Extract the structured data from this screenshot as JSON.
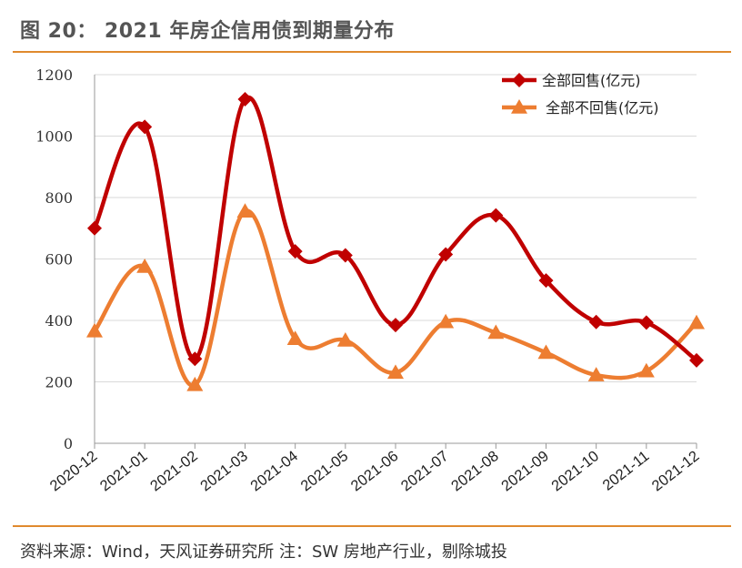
{
  "figure_title": "图 20： 2021 年房企信用债到期量分布",
  "source_note": "资料来源：Wind，天风证券研究所   注：SW 房地产行业，剔除城投",
  "colors": {
    "accent_rule": "#e08a2e",
    "series_1": "#c00000",
    "series_2": "#ed7d31"
  },
  "chart_data": {
    "type": "line",
    "title": "",
    "xlabel": "",
    "ylabel": "",
    "ylim": [
      0,
      1200
    ],
    "yticks": [
      "0",
      "200",
      "400",
      "600",
      "800",
      "1000",
      "1200"
    ],
    "grid": true,
    "legend": "top-right",
    "x": [
      "2020-12",
      "2021-01",
      "2021-02",
      "2021-03",
      "2021-04",
      "2021-05",
      "2021-06",
      "2021-07",
      "2021-08",
      "2021-09",
      "2021-10",
      "2021-11",
      "2021-12"
    ],
    "series": [
      {
        "name": "全部回售(亿元)",
        "marker": "diamond",
        "color": "#c00000",
        "values": [
          700,
          1030,
          275,
          1120,
          625,
          612,
          385,
          615,
          742,
          530,
          395,
          393,
          270
        ]
      },
      {
        "name": "全部不回售(亿元)",
        "marker": "triangle",
        "color": "#ed7d31",
        "values": [
          365,
          575,
          190,
          755,
          340,
          335,
          230,
          395,
          360,
          295,
          222,
          235,
          392
        ]
      }
    ]
  }
}
